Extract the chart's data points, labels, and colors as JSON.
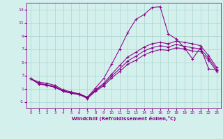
{
  "xlabel": "Windchill (Refroidissement éolien,°C)",
  "background_color": "#d4f0ec",
  "grid_color": "#aad4ce",
  "line_color": "#880088",
  "xlim": [
    -0.5,
    23.5
  ],
  "ylim": [
    -2.0,
    14.0
  ],
  "yticks": [
    -1,
    1,
    3,
    5,
    7,
    9,
    11,
    13
  ],
  "xticks": [
    0,
    1,
    2,
    3,
    4,
    5,
    6,
    7,
    8,
    9,
    10,
    11,
    12,
    13,
    14,
    15,
    16,
    17,
    18,
    19,
    20,
    21,
    22,
    23
  ],
  "line1_x": [
    0,
    1,
    2,
    3,
    4,
    5,
    6,
    7,
    8,
    9,
    10,
    11,
    12,
    13,
    14,
    15,
    16,
    17,
    18,
    19,
    20,
    21,
    22,
    23
  ],
  "line1_y": [
    2.5,
    2.0,
    1.8,
    1.5,
    0.8,
    0.5,
    0.2,
    -0.3,
    1.1,
    2.5,
    4.7,
    7.0,
    9.5,
    11.5,
    12.2,
    13.3,
    13.4,
    9.3,
    8.5,
    7.2,
    5.5,
    7.2,
    4.0,
    3.8
  ],
  "line2_x": [
    0,
    1,
    2,
    3,
    4,
    5,
    6,
    7,
    8,
    9,
    10,
    11,
    12,
    13,
    14,
    15,
    16,
    17,
    18,
    19,
    20,
    21,
    22,
    23
  ],
  "line2_y": [
    2.5,
    1.8,
    1.6,
    1.3,
    0.7,
    0.4,
    0.2,
    -0.3,
    0.8,
    1.8,
    3.2,
    4.5,
    5.8,
    6.5,
    7.3,
    7.8,
    8.0,
    7.8,
    8.2,
    8.0,
    7.8,
    7.5,
    6.0,
    4.2
  ],
  "line3_x": [
    0,
    1,
    2,
    3,
    4,
    5,
    6,
    7,
    8,
    9,
    10,
    11,
    12,
    13,
    14,
    15,
    16,
    17,
    18,
    19,
    20,
    21,
    22,
    23
  ],
  "line3_y": [
    2.5,
    1.7,
    1.5,
    1.2,
    0.6,
    0.3,
    0.1,
    -0.4,
    0.7,
    1.6,
    2.9,
    4.0,
    5.2,
    5.9,
    6.7,
    7.2,
    7.5,
    7.3,
    7.7,
    7.4,
    7.2,
    7.0,
    5.6,
    3.9
  ],
  "line4_x": [
    0,
    1,
    2,
    3,
    4,
    5,
    6,
    7,
    8,
    9,
    10,
    11,
    12,
    13,
    14,
    15,
    16,
    17,
    18,
    19,
    20,
    21,
    22,
    23
  ],
  "line4_y": [
    2.5,
    1.7,
    1.5,
    1.2,
    0.6,
    0.3,
    0.1,
    -0.5,
    0.6,
    1.4,
    2.6,
    3.6,
    4.7,
    5.3,
    6.1,
    6.6,
    6.9,
    6.8,
    7.2,
    7.0,
    6.7,
    6.6,
    5.3,
    3.6
  ]
}
